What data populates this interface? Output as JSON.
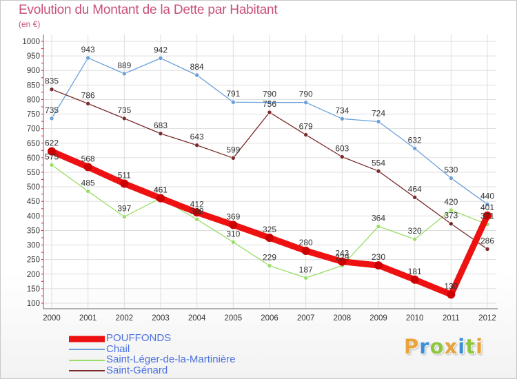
{
  "header": {
    "title": "Evolution du Montant de la Dette par Habitant",
    "subtitle": "(en €)"
  },
  "colors": {
    "title": "#c8507a",
    "legend_text": "#4a70e0",
    "grid": "#dddddd",
    "axis_tick_red": "#dd2222"
  },
  "logo": {
    "text": "Proxiti",
    "letters": [
      {
        "ch": "P",
        "color": "#e8a33a"
      },
      {
        "ch": "r",
        "color": "#3d8fd4"
      },
      {
        "ch": "o",
        "color": "#8fc63e"
      },
      {
        "ch": "x",
        "color": "#e8a33a"
      },
      {
        "ch": "i",
        "color": "#3d8fd4"
      },
      {
        "ch": "t",
        "color": "#8fc63e"
      },
      {
        "ch": "i",
        "color": "#e8a33a"
      }
    ]
  },
  "chart_data": {
    "type": "line",
    "categories": [
      "2000",
      "2001",
      "2002",
      "2003",
      "2004",
      "2005",
      "2006",
      "2007",
      "2008",
      "2009",
      "2010",
      "2011",
      "2012"
    ],
    "ylim": [
      100,
      1000
    ],
    "yticks": [
      100,
      150,
      200,
      250,
      300,
      350,
      400,
      450,
      500,
      550,
      600,
      650,
      700,
      750,
      800,
      850,
      900,
      950,
      1000
    ],
    "grid": true,
    "legend_position": "bottom",
    "series": [
      {
        "name": "POUFFONDS",
        "color": "#ee1111",
        "width": 9,
        "values": [
          622,
          568,
          511,
          461,
          412,
          369,
          325,
          280,
          243,
          230,
          181,
          130,
          401
        ],
        "labels": [
          "622",
          "568",
          "511",
          "461",
          "412",
          "369",
          "325",
          "280",
          "243",
          "230",
          "181",
          "130",
          "401"
        ]
      },
      {
        "name": "Chail",
        "color": "#6a9fd8",
        "width": 1.3,
        "values": [
          735,
          943,
          889,
          942,
          884,
          791,
          790,
          790,
          734,
          724,
          632,
          530,
          440
        ],
        "labels": [
          "735",
          "943",
          "889",
          "942",
          "884",
          "791",
          "790",
          "790",
          "734",
          "724",
          "632",
          "530",
          "440"
        ]
      },
      {
        "name": "Saint-Léger-de-la-Martinière",
        "color": "#99dd66",
        "width": 1.3,
        "values": [
          575,
          485,
          397,
          461,
          388,
          310,
          229,
          187,
          229,
          364,
          320,
          420,
          371
        ],
        "labels": [
          "575",
          "485",
          "397",
          "461",
          "388",
          "310",
          "229",
          "187",
          "229",
          "364",
          "320",
          "420",
          "371"
        ]
      },
      {
        "name": "Saint-Génard",
        "color": "#7a2a2a",
        "width": 1.3,
        "values": [
          835,
          786,
          735,
          683,
          643,
          599,
          756,
          679,
          603,
          554,
          464,
          373,
          286
        ],
        "labels": [
          "835",
          "786",
          "735",
          "683",
          "643",
          "599",
          "756",
          "679",
          "603",
          "554",
          "464",
          "373",
          "286"
        ]
      }
    ]
  }
}
